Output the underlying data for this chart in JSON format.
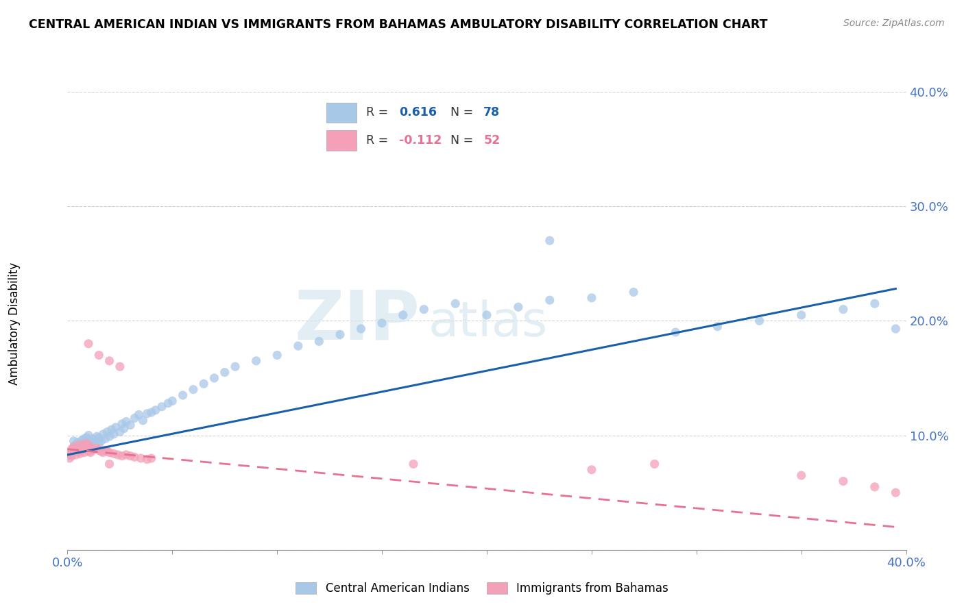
{
  "title": "CENTRAL AMERICAN INDIAN VS IMMIGRANTS FROM BAHAMAS AMBULATORY DISABILITY CORRELATION CHART",
  "source": "Source: ZipAtlas.com",
  "ylabel": "Ambulatory Disability",
  "xlabel": "",
  "xlim": [
    0.0,
    0.4
  ],
  "ylim": [
    0.0,
    0.4
  ],
  "xticks": [
    0.0,
    0.05,
    0.1,
    0.15,
    0.2,
    0.25,
    0.3,
    0.35,
    0.4
  ],
  "yticks": [
    0.0,
    0.1,
    0.2,
    0.3,
    0.4
  ],
  "blue_R": 0.616,
  "blue_N": 78,
  "pink_R": -0.112,
  "pink_N": 52,
  "legend1_label": "Central American Indians",
  "legend2_label": "Immigrants from Bahamas",
  "blue_color": "#a8c8e8",
  "pink_color": "#f4a0b8",
  "blue_line_color": "#1a5fa8",
  "pink_line_color": "#e87090",
  "watermark_zip": "ZIP",
  "watermark_atlas": "atlas",
  "blue_scatter_x": [
    0.001,
    0.002,
    0.003,
    0.003,
    0.004,
    0.004,
    0.005,
    0.005,
    0.006,
    0.006,
    0.007,
    0.007,
    0.008,
    0.008,
    0.009,
    0.009,
    0.01,
    0.01,
    0.01,
    0.011,
    0.011,
    0.012,
    0.012,
    0.013,
    0.014,
    0.015,
    0.015,
    0.016,
    0.017,
    0.018,
    0.019,
    0.02,
    0.021,
    0.022,
    0.023,
    0.025,
    0.026,
    0.027,
    0.028,
    0.03,
    0.032,
    0.034,
    0.036,
    0.038,
    0.04,
    0.042,
    0.045,
    0.048,
    0.05,
    0.055,
    0.06,
    0.065,
    0.07,
    0.075,
    0.08,
    0.09,
    0.1,
    0.11,
    0.12,
    0.13,
    0.14,
    0.15,
    0.16,
    0.17,
    0.185,
    0.2,
    0.215,
    0.23,
    0.25,
    0.27,
    0.29,
    0.31,
    0.33,
    0.35,
    0.37,
    0.385,
    0.395,
    0.23
  ],
  "blue_scatter_y": [
    0.082,
    0.085,
    0.09,
    0.095,
    0.088,
    0.092,
    0.086,
    0.094,
    0.088,
    0.093,
    0.09,
    0.096,
    0.089,
    0.097,
    0.091,
    0.098,
    0.087,
    0.093,
    0.1,
    0.088,
    0.095,
    0.091,
    0.097,
    0.093,
    0.099,
    0.092,
    0.098,
    0.095,
    0.101,
    0.097,
    0.103,
    0.099,
    0.105,
    0.101,
    0.107,
    0.103,
    0.11,
    0.106,
    0.112,
    0.109,
    0.115,
    0.118,
    0.113,
    0.119,
    0.12,
    0.122,
    0.125,
    0.128,
    0.13,
    0.135,
    0.14,
    0.145,
    0.15,
    0.155,
    0.16,
    0.165,
    0.17,
    0.178,
    0.182,
    0.188,
    0.193,
    0.198,
    0.205,
    0.21,
    0.215,
    0.205,
    0.212,
    0.218,
    0.22,
    0.225,
    0.19,
    0.195,
    0.2,
    0.205,
    0.21,
    0.215,
    0.193,
    0.27
  ],
  "pink_scatter_x": [
    0.001,
    0.001,
    0.002,
    0.002,
    0.003,
    0.003,
    0.004,
    0.004,
    0.005,
    0.005,
    0.006,
    0.006,
    0.007,
    0.007,
    0.008,
    0.008,
    0.009,
    0.009,
    0.01,
    0.01,
    0.011,
    0.011,
    0.012,
    0.013,
    0.014,
    0.015,
    0.016,
    0.017,
    0.018,
    0.019,
    0.02,
    0.022,
    0.024,
    0.026,
    0.028,
    0.03,
    0.032,
    0.035,
    0.038,
    0.04,
    0.01,
    0.015,
    0.02,
    0.025,
    0.165,
    0.25,
    0.35,
    0.37,
    0.385,
    0.395,
    0.02,
    0.28
  ],
  "pink_scatter_y": [
    0.08,
    0.085,
    0.082,
    0.088,
    0.085,
    0.09,
    0.083,
    0.088,
    0.086,
    0.091,
    0.084,
    0.089,
    0.087,
    0.092,
    0.085,
    0.09,
    0.088,
    0.093,
    0.086,
    0.091,
    0.085,
    0.09,
    0.087,
    0.088,
    0.089,
    0.087,
    0.086,
    0.085,
    0.087,
    0.086,
    0.085,
    0.084,
    0.083,
    0.082,
    0.083,
    0.082,
    0.081,
    0.08,
    0.079,
    0.08,
    0.18,
    0.17,
    0.165,
    0.16,
    0.075,
    0.07,
    0.065,
    0.06,
    0.055,
    0.05,
    0.075,
    0.075
  ]
}
